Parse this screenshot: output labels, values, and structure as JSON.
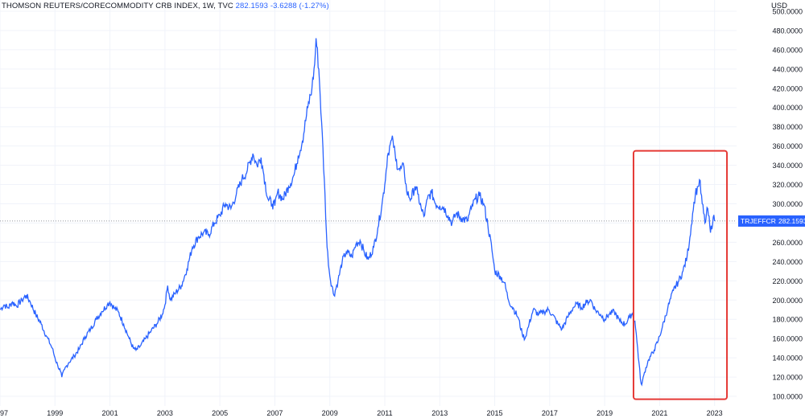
{
  "header": {
    "symbol_desc": "THOMSON REUTERS/CORECOMMODITY CRB INDEX, 1W, TVC",
    "last_value": "282.1593",
    "change": "-3.6288 (-1.27%)"
  },
  "price_tags": {
    "symbol": "TRJEFFCRB",
    "last": "282.1593"
  },
  "colors": {
    "line": "#2962ff",
    "highlight_box": "#e53935",
    "grid": "#f0f3fa",
    "axis_text": "#131722"
  },
  "chart_data": {
    "type": "line",
    "series": [
      {
        "name": "TRJEFFCRB",
        "points": [
          [
            1997.0,
            190
          ],
          [
            1997.15,
            195
          ],
          [
            1997.3,
            192
          ],
          [
            1997.45,
            198
          ],
          [
            1997.6,
            194
          ],
          [
            1997.8,
            200
          ],
          [
            1997.95,
            205
          ],
          [
            1998.1,
            198
          ],
          [
            1998.3,
            185
          ],
          [
            1998.5,
            175
          ],
          [
            1998.7,
            162
          ],
          [
            1998.9,
            150
          ],
          [
            1999.0,
            140
          ],
          [
            1999.1,
            132
          ],
          [
            1999.2,
            126
          ],
          [
            1999.25,
            120
          ],
          [
            1999.35,
            128
          ],
          [
            1999.5,
            135
          ],
          [
            1999.7,
            142
          ],
          [
            1999.9,
            150
          ],
          [
            2000.1,
            162
          ],
          [
            2000.3,
            170
          ],
          [
            2000.5,
            180
          ],
          [
            2000.7,
            188
          ],
          [
            2000.9,
            195
          ],
          [
            2001.0,
            198
          ],
          [
            2001.15,
            192
          ],
          [
            2001.3,
            188
          ],
          [
            2001.5,
            175
          ],
          [
            2001.7,
            160
          ],
          [
            2001.85,
            150
          ],
          [
            2001.95,
            148
          ],
          [
            2002.1,
            152
          ],
          [
            2002.3,
            160
          ],
          [
            2002.5,
            168
          ],
          [
            2002.7,
            175
          ],
          [
            2002.9,
            185
          ],
          [
            2003.0,
            195
          ],
          [
            2003.1,
            215
          ],
          [
            2003.2,
            200
          ],
          [
            2003.4,
            208
          ],
          [
            2003.6,
            215
          ],
          [
            2003.8,
            232
          ],
          [
            2004.0,
            255
          ],
          [
            2004.2,
            265
          ],
          [
            2004.4,
            270
          ],
          [
            2004.6,
            268
          ],
          [
            2004.8,
            280
          ],
          [
            2005.0,
            288
          ],
          [
            2005.2,
            300
          ],
          [
            2005.4,
            295
          ],
          [
            2005.6,
            310
          ],
          [
            2005.8,
            325
          ],
          [
            2006.0,
            335
          ],
          [
            2006.2,
            352
          ],
          [
            2006.35,
            340
          ],
          [
            2006.5,
            348
          ],
          [
            2006.6,
            330
          ],
          [
            2006.75,
            305
          ],
          [
            2006.9,
            300
          ],
          [
            2007.0,
            298
          ],
          [
            2007.1,
            312
          ],
          [
            2007.3,
            305
          ],
          [
            2007.5,
            318
          ],
          [
            2007.7,
            330
          ],
          [
            2007.85,
            350
          ],
          [
            2008.0,
            365
          ],
          [
            2008.2,
            400
          ],
          [
            2008.35,
            420
          ],
          [
            2008.45,
            445
          ],
          [
            2008.5,
            472
          ],
          [
            2008.6,
            440
          ],
          [
            2008.7,
            385
          ],
          [
            2008.8,
            325
          ],
          [
            2008.9,
            255
          ],
          [
            2009.0,
            225
          ],
          [
            2009.15,
            205
          ],
          [
            2009.3,
            220
          ],
          [
            2009.45,
            240
          ],
          [
            2009.6,
            250
          ],
          [
            2009.8,
            245
          ],
          [
            2009.95,
            258
          ],
          [
            2010.1,
            262
          ],
          [
            2010.25,
            250
          ],
          [
            2010.4,
            242
          ],
          [
            2010.6,
            255
          ],
          [
            2010.75,
            275
          ],
          [
            2010.9,
            300
          ],
          [
            2011.0,
            320
          ],
          [
            2011.1,
            350
          ],
          [
            2011.2,
            362
          ],
          [
            2011.3,
            366
          ],
          [
            2011.4,
            345
          ],
          [
            2011.55,
            335
          ],
          [
            2011.7,
            338
          ],
          [
            2011.8,
            312
          ],
          [
            2011.95,
            305
          ],
          [
            2012.1,
            318
          ],
          [
            2012.2,
            310
          ],
          [
            2012.35,
            292
          ],
          [
            2012.45,
            288
          ],
          [
            2012.55,
            305
          ],
          [
            2012.7,
            312
          ],
          [
            2012.85,
            300
          ],
          [
            2013.0,
            298
          ],
          [
            2013.15,
            296
          ],
          [
            2013.3,
            288
          ],
          [
            2013.45,
            280
          ],
          [
            2013.6,
            290
          ],
          [
            2013.8,
            285
          ],
          [
            2014.0,
            282
          ],
          [
            2014.15,
            295
          ],
          [
            2014.3,
            305
          ],
          [
            2014.45,
            308
          ],
          [
            2014.6,
            300
          ],
          [
            2014.75,
            278
          ],
          [
            2014.9,
            252
          ],
          [
            2015.0,
            230
          ],
          [
            2015.2,
            225
          ],
          [
            2015.35,
            218
          ],
          [
            2015.5,
            200
          ],
          [
            2015.7,
            190
          ],
          [
            2015.85,
            182
          ],
          [
            2016.0,
            165
          ],
          [
            2016.1,
            160
          ],
          [
            2016.25,
            175
          ],
          [
            2016.4,
            190
          ],
          [
            2016.6,
            185
          ],
          [
            2016.8,
            188
          ],
          [
            2016.95,
            190
          ],
          [
            2017.1,
            185
          ],
          [
            2017.3,
            175
          ],
          [
            2017.45,
            170
          ],
          [
            2017.65,
            182
          ],
          [
            2017.85,
            192
          ],
          [
            2018.0,
            196
          ],
          [
            2018.15,
            192
          ],
          [
            2018.35,
            198
          ],
          [
            2018.5,
            200
          ],
          [
            2018.65,
            190
          ],
          [
            2018.85,
            185
          ],
          [
            2019.0,
            180
          ],
          [
            2019.15,
            185
          ],
          [
            2019.35,
            188
          ],
          [
            2019.55,
            178
          ],
          [
            2019.75,
            175
          ],
          [
            2019.9,
            182
          ],
          [
            2020.0,
            186
          ],
          [
            2020.1,
            178
          ],
          [
            2020.2,
            150
          ],
          [
            2020.3,
            118
          ],
          [
            2020.35,
            112
          ],
          [
            2020.45,
            125
          ],
          [
            2020.6,
            138
          ],
          [
            2020.8,
            148
          ],
          [
            2020.95,
            158
          ],
          [
            2021.1,
            172
          ],
          [
            2021.3,
            192
          ],
          [
            2021.5,
            210
          ],
          [
            2021.7,
            220
          ],
          [
            2021.85,
            230
          ],
          [
            2022.0,
            245
          ],
          [
            2022.1,
            265
          ],
          [
            2022.2,
            290
          ],
          [
            2022.3,
            310
          ],
          [
            2022.4,
            318
          ],
          [
            2022.45,
            325
          ],
          [
            2022.55,
            300
          ],
          [
            2022.65,
            280
          ],
          [
            2022.75,
            295
          ],
          [
            2022.85,
            270
          ],
          [
            2022.95,
            286
          ],
          [
            2023.0,
            282
          ]
        ]
      }
    ],
    "x_ticks": [
      "1997",
      "1999",
      "2001",
      "2003",
      "2005",
      "2007",
      "2009",
      "2011",
      "2013",
      "2015",
      "2017",
      "2019",
      "2021",
      "2023"
    ],
    "y_ticks": [
      "100.0000",
      "120.0000",
      "140.0000",
      "160.0000",
      "180.0000",
      "200.0000",
      "220.0000",
      "240.0000",
      "260.0000",
      "280.0000",
      "300.0000",
      "320.0000",
      "340.0000",
      "360.0000",
      "380.0000",
      "400.0000",
      "420.0000",
      "440.0000",
      "460.0000",
      "480.0000",
      "500.0000"
    ],
    "x_range": [
      1997,
      2023.8
    ],
    "y_range": [
      90,
      505
    ],
    "ylabel": "USD",
    "last_price_line": 282.1593,
    "highlight": {
      "x": [
        2020.05,
        2023.45
      ],
      "y": [
        97,
        355
      ]
    },
    "grid": true
  }
}
